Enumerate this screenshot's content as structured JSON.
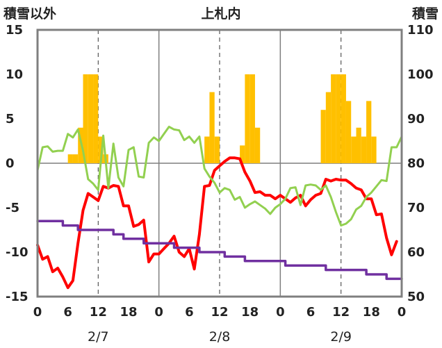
{
  "chart_data": {
    "type": "bar+line",
    "title": "上札内",
    "ylabel_left": "積雪以外",
    "ylabel_right": "積雪",
    "ylim_left": [
      -15,
      15
    ],
    "ylim_right": [
      50,
      110
    ],
    "yticks_left": [
      15,
      10,
      5,
      0,
      -5,
      -10,
      -15
    ],
    "yticks_right": [
      110,
      100,
      90,
      80,
      70,
      60,
      50
    ],
    "xticks_labels": [
      "0",
      "6",
      "12",
      "18",
      "0",
      "6",
      "12",
      "18",
      "0",
      "6",
      "12",
      "18",
      "0"
    ],
    "xticks_hours": [
      0,
      6,
      12,
      18,
      24,
      30,
      36,
      42,
      48,
      54,
      60,
      66,
      72
    ],
    "day_labels": [
      "2/7",
      "2/8",
      "2/9"
    ],
    "day_label_hours": [
      12,
      36,
      60
    ],
    "xlim_hours": [
      0,
      72
    ],
    "grid": "vertical dashed lines at 12:00, solid lines at 0:00, horizontal zero line",
    "bars": {
      "axis": "left",
      "color": "#ffc000",
      "width_hours": 1,
      "data": [
        [
          6.5,
          1
        ],
        [
          7.5,
          1
        ],
        [
          8.5,
          4
        ],
        [
          9.5,
          10
        ],
        [
          10.5,
          10
        ],
        [
          11.5,
          10
        ],
        [
          12.5,
          3
        ],
        [
          13.5,
          1
        ],
        [
          33.5,
          3
        ],
        [
          34.5,
          8
        ],
        [
          35.5,
          3
        ],
        [
          40.5,
          2
        ],
        [
          41.5,
          10
        ],
        [
          42.5,
          10
        ],
        [
          43.5,
          4
        ],
        [
          56.5,
          6
        ],
        [
          57.5,
          8
        ],
        [
          58.5,
          10
        ],
        [
          59.5,
          10
        ],
        [
          60.5,
          10
        ],
        [
          61.5,
          7
        ],
        [
          62.5,
          3
        ],
        [
          63.5,
          4
        ],
        [
          64.5,
          3
        ],
        [
          65.5,
          7
        ],
        [
          66.5,
          3
        ]
      ]
    },
    "series": [
      {
        "axis": "left",
        "color": "#ff0000",
        "width": 4,
        "points": [
          [
            0,
            -9.2
          ],
          [
            1,
            -10.8
          ],
          [
            2,
            -10.5
          ],
          [
            3,
            -12.2
          ],
          [
            4,
            -11.8
          ],
          [
            5,
            -12.8
          ],
          [
            6,
            -14
          ],
          [
            7,
            -13.2
          ],
          [
            8,
            -9
          ],
          [
            9,
            -5.3
          ],
          [
            10,
            -3.4
          ],
          [
            11,
            -3.8
          ],
          [
            12,
            -4.2
          ],
          [
            13,
            -2.6
          ],
          [
            14,
            -2.8
          ],
          [
            15,
            -2.5
          ],
          [
            16,
            -2.6
          ],
          [
            17,
            -4.8
          ],
          [
            18,
            -4.8
          ],
          [
            19,
            -7.1
          ],
          [
            20,
            -6.9
          ],
          [
            21,
            -6.4
          ],
          [
            22,
            -11.1
          ],
          [
            23,
            -10.2
          ],
          [
            24,
            -10.2
          ],
          [
            25,
            -9.6
          ],
          [
            26,
            -9
          ],
          [
            27,
            -8.2
          ],
          [
            28,
            -10
          ],
          [
            29,
            -10.5
          ],
          [
            30,
            -9.6
          ],
          [
            31,
            -11.9
          ],
          [
            32,
            -8
          ],
          [
            33,
            -2.6
          ],
          [
            34,
            -2.5
          ],
          [
            35,
            -0.8
          ],
          [
            36,
            -0.3
          ],
          [
            37,
            0.2
          ],
          [
            38,
            0.6
          ],
          [
            39,
            0.6
          ],
          [
            40,
            0.5
          ],
          [
            41,
            -1
          ],
          [
            42,
            -2
          ],
          [
            43,
            -3.3
          ],
          [
            44,
            -3.2
          ],
          [
            45,
            -3.6
          ],
          [
            46,
            -3.6
          ],
          [
            47,
            -4
          ],
          [
            48,
            -3.6
          ],
          [
            49,
            -4
          ],
          [
            50,
            -4.4
          ],
          [
            51,
            -3.9
          ],
          [
            52,
            -3.6
          ],
          [
            53,
            -4.8
          ],
          [
            54,
            -4.1
          ],
          [
            55,
            -3.6
          ],
          [
            56,
            -3.4
          ],
          [
            57,
            -1.8
          ],
          [
            58,
            -2
          ],
          [
            59,
            -1.8
          ],
          [
            60,
            -1.9
          ],
          [
            61,
            -1.9
          ],
          [
            62,
            -2.3
          ],
          [
            63,
            -2.8
          ],
          [
            64,
            -3
          ],
          [
            65,
            -4
          ],
          [
            66,
            -4
          ],
          [
            67,
            -5.8
          ],
          [
            68,
            -5.7
          ],
          [
            69,
            -8.4
          ],
          [
            70,
            -10.3
          ],
          [
            71,
            -8.8
          ]
        ]
      },
      {
        "axis": "left",
        "color": "#92d050",
        "width": 3,
        "points": [
          [
            0,
            -0.8
          ],
          [
            1,
            1.8
          ],
          [
            2,
            1.9
          ],
          [
            3,
            1.3
          ],
          [
            4,
            1.4
          ],
          [
            5,
            1.4
          ],
          [
            6,
            3.3
          ],
          [
            7,
            2.9
          ],
          [
            8,
            3.8
          ],
          [
            9,
            1.4
          ],
          [
            10,
            -1.8
          ],
          [
            11,
            -2.3
          ],
          [
            12,
            -3
          ],
          [
            13,
            3.1
          ],
          [
            14,
            -2.8
          ],
          [
            15,
            2.2
          ],
          [
            16,
            -1.6
          ],
          [
            17,
            -2.6
          ],
          [
            18,
            1.5
          ],
          [
            19,
            1.8
          ],
          [
            20,
            -1.5
          ],
          [
            21,
            -1.6
          ],
          [
            22,
            2.3
          ],
          [
            23,
            2.9
          ],
          [
            24,
            2.5
          ],
          [
            25,
            3.3
          ],
          [
            26,
            4.1
          ],
          [
            27,
            3.8
          ],
          [
            28,
            3.7
          ],
          [
            29,
            2.6
          ],
          [
            30,
            3
          ],
          [
            31,
            2.3
          ],
          [
            32,
            3
          ],
          [
            33,
            -0.6
          ],
          [
            34,
            -1.5
          ],
          [
            35,
            -2.2
          ],
          [
            36,
            -3.3
          ],
          [
            37,
            -2.8
          ],
          [
            38,
            -3
          ],
          [
            39,
            -4.1
          ],
          [
            40,
            -3.8
          ],
          [
            41,
            -5
          ],
          [
            42,
            -4.6
          ],
          [
            43,
            -4.3
          ],
          [
            44,
            -4.7
          ],
          [
            45,
            -5.1
          ],
          [
            46,
            -5.7
          ],
          [
            47,
            -5
          ],
          [
            48,
            -4.6
          ],
          [
            49,
            -4
          ],
          [
            50,
            -2.8
          ],
          [
            51,
            -2.7
          ],
          [
            52,
            -4.7
          ],
          [
            53,
            -2.5
          ],
          [
            54,
            -2.4
          ],
          [
            55,
            -2.5
          ],
          [
            56,
            -3
          ],
          [
            57,
            -2.5
          ],
          [
            58,
            -3.8
          ],
          [
            59,
            -5.5
          ],
          [
            60,
            -7
          ],
          [
            61,
            -6.8
          ],
          [
            62,
            -6.3
          ],
          [
            63,
            -5.2
          ],
          [
            64,
            -4.8
          ],
          [
            65,
            -3.8
          ],
          [
            66,
            -3.3
          ],
          [
            67,
            -2.6
          ],
          [
            68,
            -1.9
          ],
          [
            69,
            -2
          ],
          [
            70,
            1.8
          ],
          [
            71,
            1.8
          ],
          [
            72,
            3
          ]
        ]
      },
      {
        "axis": "left",
        "color": "#7030a0",
        "width": 3.5,
        "step": true,
        "points": [
          [
            0,
            -6.5
          ],
          [
            1,
            -6.5
          ],
          [
            2,
            -6.5
          ],
          [
            3,
            -6.5
          ],
          [
            4,
            -6.5
          ],
          [
            5,
            -7
          ],
          [
            6,
            -7
          ],
          [
            7,
            -7
          ],
          [
            8,
            -7.5
          ],
          [
            9,
            -7.5
          ],
          [
            10,
            -7.5
          ],
          [
            11,
            -7.5
          ],
          [
            12,
            -7.5
          ],
          [
            13,
            -7.5
          ],
          [
            14,
            -7.5
          ],
          [
            15,
            -8
          ],
          [
            16,
            -8
          ],
          [
            17,
            -8.5
          ],
          [
            18,
            -8.5
          ],
          [
            19,
            -8.5
          ],
          [
            20,
            -8.5
          ],
          [
            21,
            -9
          ],
          [
            22,
            -9
          ],
          [
            23,
            -9
          ],
          [
            24,
            -9
          ],
          [
            25,
            -9
          ],
          [
            26,
            -9
          ],
          [
            27,
            -9.5
          ],
          [
            28,
            -9.5
          ],
          [
            29,
            -9.5
          ],
          [
            30,
            -9.5
          ],
          [
            31,
            -9.5
          ],
          [
            32,
            -10
          ],
          [
            33,
            -10
          ],
          [
            34,
            -10
          ],
          [
            35,
            -10
          ],
          [
            36,
            -10
          ],
          [
            37,
            -10.5
          ],
          [
            38,
            -10.5
          ],
          [
            39,
            -10.5
          ],
          [
            40,
            -10.5
          ],
          [
            41,
            -11
          ],
          [
            42,
            -11
          ],
          [
            43,
            -11
          ],
          [
            44,
            -11
          ],
          [
            45,
            -11
          ],
          [
            46,
            -11
          ],
          [
            47,
            -11
          ],
          [
            48,
            -11
          ],
          [
            49,
            -11.5
          ],
          [
            50,
            -11.5
          ],
          [
            51,
            -11.5
          ],
          [
            52,
            -11.5
          ],
          [
            53,
            -11.5
          ],
          [
            54,
            -11.5
          ],
          [
            55,
            -11.5
          ],
          [
            56,
            -11.5
          ],
          [
            57,
            -12
          ],
          [
            58,
            -12
          ],
          [
            59,
            -12
          ],
          [
            60,
            -12
          ],
          [
            61,
            -12
          ],
          [
            62,
            -12
          ],
          [
            63,
            -12
          ],
          [
            64,
            -12
          ],
          [
            65,
            -12.5
          ],
          [
            66,
            -12.5
          ],
          [
            67,
            -12.5
          ],
          [
            68,
            -12.5
          ],
          [
            69,
            -13
          ],
          [
            70,
            -13
          ],
          [
            71,
            -13
          ]
        ]
      }
    ]
  }
}
